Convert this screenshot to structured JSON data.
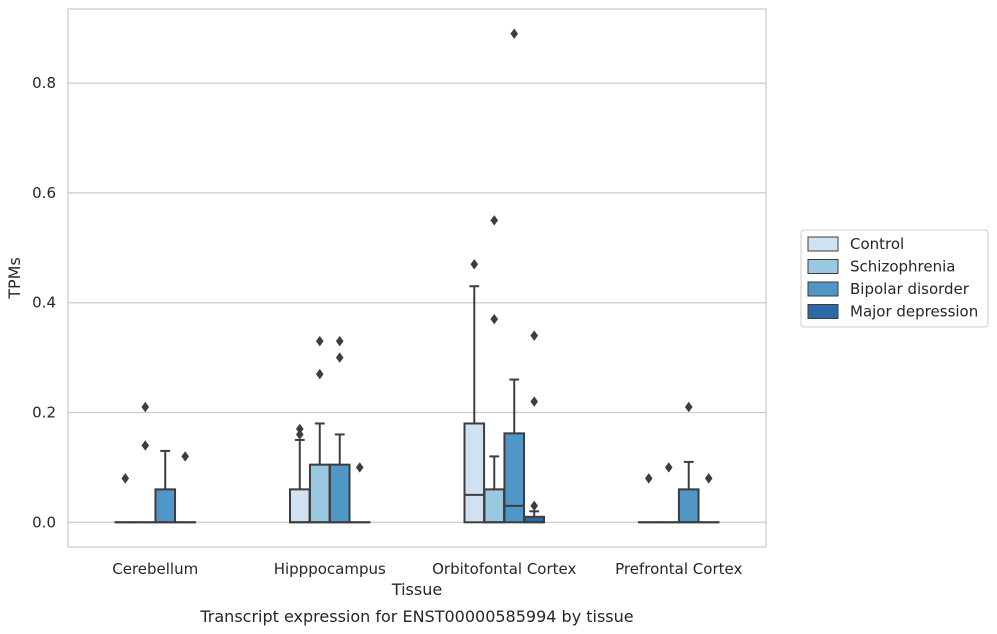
{
  "caption": "Transcript expression for ENST00000585994 by tissue",
  "chart_data": {
    "type": "box",
    "xlabel": "Tissue",
    "ylabel": "TPMs",
    "ylim": [
      -0.045,
      0.935
    ],
    "yticks": [
      "0.0",
      "0.2",
      "0.4",
      "0.6",
      "0.8"
    ],
    "grid": "horizontal",
    "legend_position": "right",
    "categories": [
      "Cerebellum",
      "Hipppocampus",
      "Orbitofontal Cortex",
      "Prefrontal Cortex"
    ],
    "series": [
      {
        "name": "Control",
        "color": "#d0e1f2",
        "boxes": [
          {
            "q1": 0,
            "median": 0,
            "q3": 0,
            "whisker_low": 0,
            "whisker_high": 0,
            "outliers": [
              0.08
            ]
          },
          {
            "q1": 0,
            "median": 0,
            "q3": 0.06,
            "whisker_low": 0,
            "whisker_high": 0.15,
            "outliers": [
              0.16,
              0.17
            ]
          },
          {
            "q1": 0,
            "median": 0.05,
            "q3": 0.18,
            "whisker_low": 0,
            "whisker_high": 0.43,
            "outliers": [
              0.47
            ]
          },
          {
            "q1": 0,
            "median": 0,
            "q3": 0,
            "whisker_low": 0,
            "whisker_high": 0,
            "outliers": [
              0.08
            ]
          }
        ]
      },
      {
        "name": "Schizophrenia",
        "color": "#9ac8e0",
        "boxes": [
          {
            "q1": 0,
            "median": 0,
            "q3": 0,
            "whisker_low": 0,
            "whisker_high": 0,
            "outliers": [
              0.14,
              0.21
            ]
          },
          {
            "q1": 0,
            "median": 0,
            "q3": 0.105,
            "whisker_low": 0,
            "whisker_high": 0.18,
            "outliers": [
              0.27,
              0.33
            ]
          },
          {
            "q1": 0,
            "median": 0,
            "q3": 0.06,
            "whisker_low": 0,
            "whisker_high": 0.12,
            "outliers": [
              0.37,
              0.55
            ]
          },
          {
            "q1": 0,
            "median": 0,
            "q3": 0,
            "whisker_low": 0,
            "whisker_high": 0,
            "outliers": [
              0.1
            ]
          }
        ]
      },
      {
        "name": "Bipolar disorder",
        "color": "#5096c6",
        "boxes": [
          {
            "q1": 0,
            "median": 0,
            "q3": 0.06,
            "whisker_low": 0,
            "whisker_high": 0.13,
            "outliers": []
          },
          {
            "q1": 0,
            "median": 0,
            "q3": 0.105,
            "whisker_low": 0,
            "whisker_high": 0.16,
            "outliers": [
              0.3,
              0.33
            ]
          },
          {
            "q1": 0,
            "median": 0.03,
            "q3": 0.162,
            "whisker_low": 0,
            "whisker_high": 0.26,
            "outliers": [
              0.89
            ]
          },
          {
            "q1": 0,
            "median": 0,
            "q3": 0.06,
            "whisker_low": 0,
            "whisker_high": 0.11,
            "outliers": [
              0.21
            ]
          }
        ]
      },
      {
        "name": "Major depression",
        "color": "#2b6aa6",
        "boxes": [
          {
            "q1": 0,
            "median": 0,
            "q3": 0,
            "whisker_low": 0,
            "whisker_high": 0,
            "outliers": [
              0.12
            ]
          },
          {
            "q1": 0,
            "median": 0,
            "q3": 0,
            "whisker_low": 0,
            "whisker_high": 0,
            "outliers": [
              0.1
            ]
          },
          {
            "q1": 0,
            "median": 0,
            "q3": 0.01,
            "whisker_low": 0,
            "whisker_high": 0.02,
            "outliers": [
              0.03,
              0.22,
              0.34
            ]
          },
          {
            "q1": 0,
            "median": 0,
            "q3": 0,
            "whisker_low": 0,
            "whisker_high": 0,
            "outliers": [
              0.08
            ]
          }
        ]
      }
    ]
  }
}
